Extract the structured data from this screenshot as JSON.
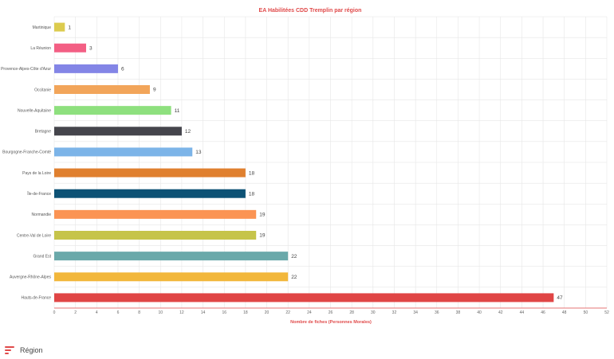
{
  "legend": {
    "label": "Région",
    "icon": "bar-chart-icon"
  },
  "chart_data": {
    "type": "bar",
    "orientation": "horizontal",
    "title": "EA Habilitées CDD Tremplin par région",
    "xlabel": "Nombre de fiches (Personnes Morales)",
    "ylabel": "",
    "xlim": [
      0,
      52
    ],
    "x_ticks": [
      0,
      2,
      4,
      6,
      8,
      10,
      12,
      14,
      16,
      18,
      20,
      22,
      24,
      26,
      28,
      30,
      32,
      34,
      36,
      38,
      40,
      42,
      44,
      46,
      48,
      50,
      52
    ],
    "grid": true,
    "categories": [
      "Martinique",
      "La Réunion",
      "Provence-Alpes-Côte d'Azur",
      "Occitanie",
      "Nouvelle-Aquitaine",
      "Bretagne",
      "Bourgogne-Franche-Comté",
      "Pays de la Loire",
      "Île-de-France",
      "Normandie",
      "Centre-Val de Loire",
      "Grand Est",
      "Auvergne-Rhône-Alpes",
      "Hauts-de-France"
    ],
    "values": [
      1,
      3,
      6,
      9,
      11,
      12,
      13,
      18,
      18,
      19,
      19,
      22,
      22,
      47
    ],
    "colors": [
      "#dccb4e",
      "#f35f84",
      "#8385e6",
      "#f2a55a",
      "#8ee07e",
      "#45454c",
      "#7cb4e8",
      "#e0802f",
      "#0d5275",
      "#fb9454",
      "#c6c44a",
      "#6aa9aa",
      "#f2b73b",
      "#e04545"
    ]
  }
}
